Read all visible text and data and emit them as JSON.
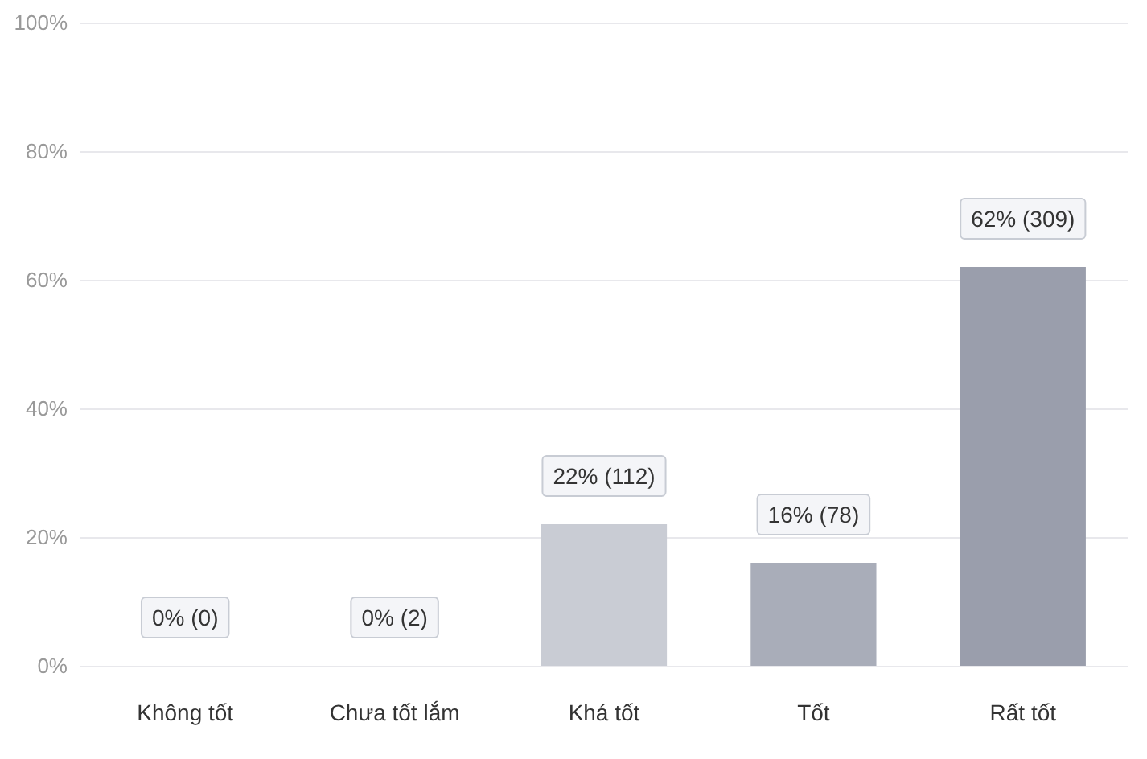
{
  "chart_data": {
    "type": "bar",
    "categories": [
      "Không tốt",
      "Chưa tốt lắm",
      "Khá tốt",
      "Tốt",
      "Rất tốt"
    ],
    "values": [
      0,
      0,
      22,
      16,
      62
    ],
    "value_labels": [
      "0% (0)",
      "0% (2)",
      "22% (112)",
      "16% (78)",
      "62% (309)"
    ],
    "colors": [
      "#7e8494",
      "#7e8494",
      "#c9ccd4",
      "#a9adb9",
      "#9a9eac"
    ],
    "ylim": [
      0,
      100
    ],
    "yticks": [
      {
        "value": 0,
        "label": "0%"
      },
      {
        "value": 20,
        "label": "20%"
      },
      {
        "value": 40,
        "label": "40%"
      },
      {
        "value": 60,
        "label": "60%"
      },
      {
        "value": 80,
        "label": "80%"
      },
      {
        "value": 100,
        "label": "100%"
      }
    ],
    "grid": "y"
  }
}
